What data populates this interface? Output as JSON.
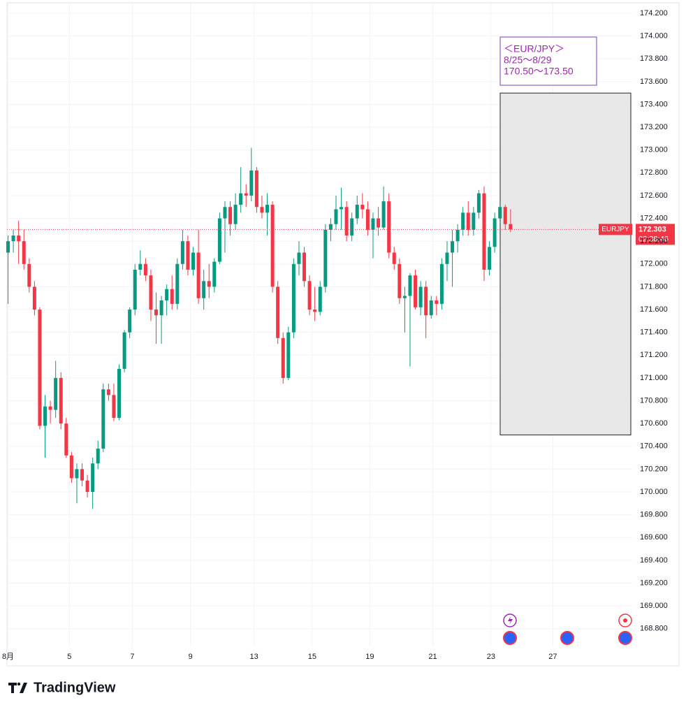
{
  "chart_data": {
    "type": "candlestick",
    "symbol": "EURJPY",
    "countdown": "02:38:46",
    "up_color": "#089981",
    "down_color": "#f23645",
    "grid": true,
    "ylim": [
      168.645,
      174.292
    ],
    "yticks": [
      {
        "value": 174.2,
        "label": "174.200"
      },
      {
        "value": 174.0,
        "label": "174.000"
      },
      {
        "value": 173.8,
        "label": "173.800"
      },
      {
        "value": 173.6,
        "label": "173.600"
      },
      {
        "value": 173.4,
        "label": "173.400"
      },
      {
        "value": 173.2,
        "label": "173.200"
      },
      {
        "value": 173.0,
        "label": "173.000"
      },
      {
        "value": 172.8,
        "label": "172.800"
      },
      {
        "value": 172.6,
        "label": "172.600"
      },
      {
        "value": 172.4,
        "label": "172.400"
      },
      {
        "value": 172.2,
        "label": "172.200"
      },
      {
        "value": 172.0,
        "label": "172.000"
      },
      {
        "value": 171.8,
        "label": "171.800"
      },
      {
        "value": 171.6,
        "label": "171.600"
      },
      {
        "value": 171.4,
        "label": "171.400"
      },
      {
        "value": 171.2,
        "label": "171.200"
      },
      {
        "value": 171.0,
        "label": "171.000"
      },
      {
        "value": 170.8,
        "label": "170.800"
      },
      {
        "value": 170.6,
        "label": "170.600"
      },
      {
        "value": 170.4,
        "label": "170.400"
      },
      {
        "value": 170.2,
        "label": "170.200"
      },
      {
        "value": 170.0,
        "label": "170.000"
      },
      {
        "value": 169.8,
        "label": "169.800"
      },
      {
        "value": 169.6,
        "label": "169.600"
      },
      {
        "value": 169.4,
        "label": "169.400"
      },
      {
        "value": 169.2,
        "label": "169.200"
      },
      {
        "value": 169.0,
        "label": "169.000"
      },
      {
        "value": 168.8,
        "label": "168.800"
      }
    ],
    "xlim": [
      -0.2,
      118
    ],
    "xticks": [
      {
        "value": 0,
        "label": "8月"
      },
      {
        "value": 11.6,
        "label": "5"
      },
      {
        "value": 23.5,
        "label": "7"
      },
      {
        "value": 34.5,
        "label": "9"
      },
      {
        "value": 46.5,
        "label": "13"
      },
      {
        "value": 57.5,
        "label": "15"
      },
      {
        "value": 68.4,
        "label": "19"
      },
      {
        "value": 80.3,
        "label": "21"
      },
      {
        "value": 91.3,
        "label": "23"
      },
      {
        "value": 103,
        "label": "27"
      }
    ],
    "ohlc": [
      [
        172.1,
        172.25,
        171.65,
        172.2
      ],
      [
        172.2,
        172.3,
        172.1,
        172.25
      ],
      [
        172.25,
        172.38,
        172.0,
        172.2
      ],
      [
        172.2,
        172.3,
        171.95,
        172.0
      ],
      [
        172.0,
        172.05,
        171.75,
        171.8
      ],
      [
        171.8,
        171.85,
        171.55,
        171.6
      ],
      [
        171.6,
        171.62,
        170.55,
        170.58
      ],
      [
        170.58,
        170.85,
        170.3,
        170.75
      ],
      [
        170.75,
        170.8,
        170.6,
        170.72
      ],
      [
        170.72,
        171.15,
        170.65,
        171.0
      ],
      [
        171.0,
        171.05,
        170.55,
        170.6
      ],
      [
        170.6,
        170.65,
        170.3,
        170.32
      ],
      [
        170.32,
        170.35,
        170.08,
        170.12
      ],
      [
        170.12,
        170.25,
        169.9,
        170.2
      ],
      [
        170.2,
        170.25,
        170.05,
        170.1
      ],
      [
        170.1,
        170.15,
        169.95,
        170.0
      ],
      [
        170.0,
        170.3,
        169.85,
        170.25
      ],
      [
        170.25,
        170.45,
        170.2,
        170.38
      ],
      [
        170.38,
        170.95,
        170.35,
        170.9
      ],
      [
        170.9,
        170.95,
        170.8,
        170.85
      ],
      [
        170.85,
        170.95,
        170.62,
        170.65
      ],
      [
        170.65,
        171.12,
        170.63,
        171.08
      ],
      [
        171.08,
        171.42,
        171.05,
        171.4
      ],
      [
        171.4,
        171.62,
        171.35,
        171.6
      ],
      [
        171.6,
        172.0,
        171.55,
        171.95
      ],
      [
        171.95,
        172.12,
        171.9,
        172.0
      ],
      [
        172.0,
        172.05,
        171.85,
        171.9
      ],
      [
        171.9,
        171.95,
        171.5,
        171.6
      ],
      [
        171.6,
        171.75,
        171.3,
        171.55
      ],
      [
        171.55,
        171.72,
        171.3,
        171.68
      ],
      [
        171.68,
        171.82,
        171.55,
        171.78
      ],
      [
        171.78,
        171.9,
        171.6,
        171.65
      ],
      [
        171.65,
        172.05,
        171.6,
        172.0
      ],
      [
        172.0,
        172.3,
        171.95,
        172.2
      ],
      [
        172.2,
        172.25,
        171.9,
        171.95
      ],
      [
        171.95,
        172.15,
        171.9,
        172.1
      ],
      [
        172.1,
        172.3,
        171.65,
        171.7
      ],
      [
        171.7,
        171.95,
        171.6,
        171.85
      ],
      [
        171.85,
        172.0,
        171.7,
        171.8
      ],
      [
        171.8,
        172.05,
        171.75,
        172.02
      ],
      [
        172.02,
        172.45,
        172.0,
        172.4
      ],
      [
        172.4,
        172.55,
        172.1,
        172.5
      ],
      [
        172.5,
        172.55,
        172.25,
        172.35
      ],
      [
        172.35,
        172.62,
        172.3,
        172.52
      ],
      [
        172.52,
        172.85,
        172.45,
        172.62
      ],
      [
        172.62,
        172.7,
        172.5,
        172.6
      ],
      [
        172.6,
        173.02,
        172.55,
        172.82
      ],
      [
        172.82,
        172.85,
        172.45,
        172.5
      ],
      [
        172.5,
        172.6,
        172.4,
        172.45
      ],
      [
        172.45,
        172.62,
        172.25,
        172.52
      ],
      [
        172.52,
        172.55,
        171.75,
        171.8
      ],
      [
        171.8,
        171.85,
        171.3,
        171.35
      ],
      [
        171.35,
        171.4,
        170.95,
        171.0
      ],
      [
        171.0,
        171.45,
        170.98,
        171.4
      ],
      [
        171.4,
        172.05,
        171.35,
        172.0
      ],
      [
        172.0,
        172.2,
        171.9,
        172.1
      ],
      [
        172.1,
        172.15,
        171.8,
        171.85
      ],
      [
        171.85,
        171.9,
        171.55,
        171.6
      ],
      [
        171.6,
        171.8,
        171.5,
        171.58
      ],
      [
        171.58,
        171.85,
        171.55,
        171.8
      ],
      [
        171.8,
        172.35,
        171.75,
        172.3
      ],
      [
        172.3,
        172.4,
        172.2,
        172.35
      ],
      [
        172.35,
        172.6,
        172.3,
        172.48
      ],
      [
        172.48,
        172.67,
        172.3,
        172.5
      ],
      [
        172.5,
        172.55,
        172.2,
        172.25
      ],
      [
        172.25,
        172.45,
        172.2,
        172.4
      ],
      [
        172.4,
        172.6,
        172.35,
        172.52
      ],
      [
        172.52,
        172.62,
        172.4,
        172.48
      ],
      [
        172.48,
        172.55,
        172.25,
        172.3
      ],
      [
        172.3,
        172.45,
        172.05,
        172.4
      ],
      [
        172.4,
        172.5,
        172.25,
        172.32
      ],
      [
        172.32,
        172.68,
        172.3,
        172.55
      ],
      [
        172.55,
        172.62,
        172.05,
        172.1
      ],
      [
        172.1,
        172.15,
        171.95,
        172.0
      ],
      [
        172.0,
        172.05,
        171.65,
        171.7
      ],
      [
        171.7,
        171.8,
        171.4,
        171.72
      ],
      [
        171.72,
        171.92,
        171.1,
        171.9
      ],
      [
        171.9,
        171.95,
        171.6,
        171.62
      ],
      [
        171.62,
        171.85,
        171.55,
        171.8
      ],
      [
        171.8,
        171.85,
        171.35,
        171.55
      ],
      [
        171.55,
        171.72,
        171.52,
        171.68
      ],
      [
        171.68,
        171.72,
        171.55,
        171.65
      ],
      [
        171.65,
        172.05,
        171.6,
        172.0
      ],
      [
        172.0,
        172.2,
        171.85,
        172.1
      ],
      [
        172.1,
        172.3,
        171.8,
        172.2
      ],
      [
        172.2,
        172.35,
        172.1,
        172.3
      ],
      [
        172.3,
        172.5,
        172.25,
        172.45
      ],
      [
        172.45,
        172.55,
        172.25,
        172.3
      ],
      [
        172.3,
        172.5,
        172.25,
        172.45
      ],
      [
        172.45,
        172.65,
        172.4,
        172.62
      ],
      [
        172.62,
        172.68,
        171.85,
        171.95
      ],
      [
        171.95,
        172.2,
        171.9,
        172.15
      ],
      [
        172.15,
        172.45,
        172.1,
        172.4
      ],
      [
        172.4,
        172.55,
        172.35,
        172.5
      ],
      [
        172.5,
        172.52,
        172.3,
        172.35
      ],
      [
        172.35,
        172.48,
        172.28,
        172.303
      ]
    ],
    "zone": [
      170.5,
      173.5
    ],
    "annotation": [
      "＜EUR/JPY＞",
      "8/25〜8/29",
      "170.50〜173.50"
    ]
  },
  "brand": "TradingView"
}
